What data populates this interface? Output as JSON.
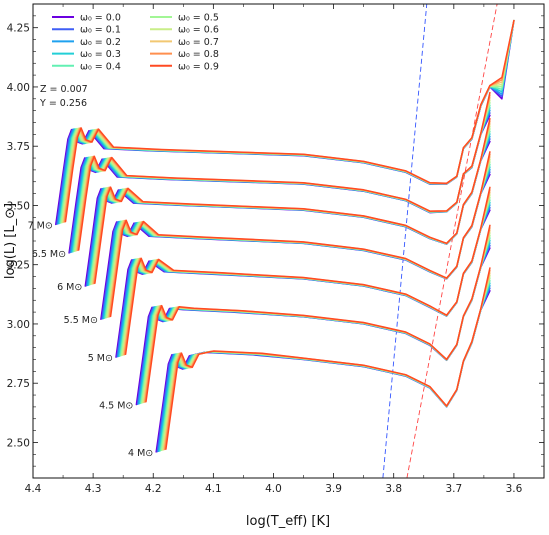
{
  "chart_data": {
    "type": "line",
    "title": "",
    "xlabel": "log(T_eff) [K]",
    "ylabel": "log(L) [L_⊙]",
    "xlim": [
      4.4,
      3.55
    ],
    "ylim": [
      2.35,
      4.35
    ],
    "x_inverted": true,
    "x_ticks": [
      "4.4",
      "4.3",
      "4.2",
      "4.1",
      "4.0",
      "3.9",
      "3.8",
      "3.7",
      "3.6"
    ],
    "y_ticks": [
      "2.50",
      "2.75",
      "3.00",
      "3.25",
      "3.50",
      "3.75",
      "4.00",
      "4.25"
    ],
    "grid": false,
    "legend_position": "top-left",
    "annotations": [
      "Z = 0.007",
      "Y = 0.256"
    ],
    "series": [
      {
        "name": "ω₀ = 0.0",
        "color": "#6a00e0"
      },
      {
        "name": "ω₀ = 0.1",
        "color": "#3f5ef5"
      },
      {
        "name": "ω₀ = 0.2",
        "color": "#1fa1ef"
      },
      {
        "name": "ω₀ = 0.3",
        "color": "#23cfd6"
      },
      {
        "name": "ω₀ = 0.4",
        "color": "#62f0b3"
      },
      {
        "name": "ω₀ = 0.5",
        "color": "#a2f695"
      },
      {
        "name": "ω₀ = 0.6",
        "color": "#c9ee88"
      },
      {
        "name": "ω₀ = 0.7",
        "color": "#f2c872"
      },
      {
        "name": "ω₀ = 0.8",
        "color": "#ff8f4e"
      },
      {
        "name": "ω₀ = 0.9",
        "color": "#ff4a22"
      }
    ],
    "masses": [
      {
        "label": "4 M⊙",
        "zams_x": 4.195,
        "zams_y": 2.46,
        "peak_y": 2.87,
        "plateau_y": 2.84,
        "rgb_y": 2.7
      },
      {
        "label": "4.5 M⊙",
        "zams_x": 4.228,
        "zams_y": 2.66,
        "peak_y": 3.07,
        "plateau_y": 3.02,
        "rgb_y": 2.89
      },
      {
        "label": "5 M⊙",
        "zams_x": 4.262,
        "zams_y": 2.86,
        "peak_y": 3.27,
        "plateau_y": 3.18,
        "rgb_y": 3.07
      },
      {
        "label": "5.5 M⊙",
        "zams_x": 4.287,
        "zams_y": 3.02,
        "peak_y": 3.43,
        "plateau_y": 3.33,
        "rgb_y": 3.22
      },
      {
        "label": "6 M⊙",
        "zams_x": 4.313,
        "zams_y": 3.16,
        "peak_y": 3.57,
        "plateau_y": 3.47,
        "rgb_y": 3.36
      },
      {
        "label": "6.5 M⊙",
        "zams_x": 4.34,
        "zams_y": 3.3,
        "peak_y": 3.7,
        "plateau_y": 3.58,
        "rgb_y": 3.49
      },
      {
        "label": "7 M⊙",
        "zams_x": 4.362,
        "zams_y": 3.42,
        "peak_y": 3.82,
        "plateau_y": 3.7,
        "rgb_y": 3.6
      }
    ],
    "instability_strip_lines": [
      {
        "color": "#3355ff",
        "x": [
          3.818,
          3.745
        ],
        "y": [
          2.35,
          4.35
        ]
      },
      {
        "color": "#ff4444",
        "x": [
          3.778,
          3.628
        ],
        "y": [
          2.35,
          4.35
        ]
      }
    ]
  }
}
